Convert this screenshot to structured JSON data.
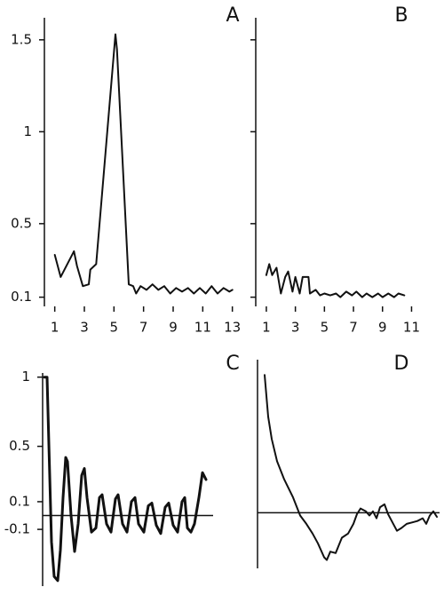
{
  "chart_data": [
    {
      "type": "line",
      "title": "A",
      "color": "#111111",
      "x": [
        1,
        1.4,
        2.3,
        2.5,
        2.9,
        3.3,
        3.4,
        3.8,
        5.1,
        5.2,
        6.0,
        6.3,
        6.5,
        6.8,
        7.2,
        7.6,
        8.0,
        8.4,
        8.8,
        9.2,
        9.6,
        10.0,
        10.4,
        10.8,
        11.2,
        11.6,
        12.0,
        12.4,
        12.8,
        13.0
      ],
      "values": [
        0.33,
        0.21,
        0.35,
        0.27,
        0.16,
        0.17,
        0.25,
        0.28,
        1.53,
        1.45,
        0.17,
        0.16,
        0.12,
        0.16,
        0.14,
        0.17,
        0.14,
        0.16,
        0.12,
        0.15,
        0.13,
        0.15,
        0.12,
        0.15,
        0.12,
        0.16,
        0.12,
        0.15,
        0.13,
        0.14
      ],
      "xlim": [
        0.3,
        13.5
      ],
      "ylim": [
        0.05,
        1.62
      ],
      "xticks": [
        1,
        3,
        5,
        7,
        9,
        11,
        13
      ],
      "yticks": [
        0.1,
        0.5,
        1,
        1.5
      ],
      "ytick_labels": true
    },
    {
      "type": "line",
      "title": "B",
      "color": "#111111",
      "x": [
        1.0,
        1.2,
        1.4,
        1.7,
        2.0,
        2.3,
        2.5,
        2.8,
        3.0,
        3.3,
        3.5,
        3.9,
        4.0,
        4.4,
        4.7,
        5.0,
        5.4,
        5.8,
        6.1,
        6.5,
        6.9,
        7.2,
        7.6,
        7.9,
        8.3,
        8.7,
        9.0,
        9.4,
        9.8,
        10.1,
        10.5
      ],
      "values": [
        0.22,
        0.28,
        0.22,
        0.26,
        0.12,
        0.21,
        0.24,
        0.13,
        0.21,
        0.12,
        0.21,
        0.21,
        0.12,
        0.14,
        0.11,
        0.12,
        0.11,
        0.12,
        0.1,
        0.13,
        0.11,
        0.13,
        0.1,
        0.12,
        0.1,
        0.12,
        0.1,
        0.12,
        0.1,
        0.12,
        0.11
      ],
      "xlim": [
        0.27,
        11.4
      ],
      "ylim": [
        0.05,
        1.62
      ],
      "xticks": [
        1,
        3,
        5,
        7,
        9,
        11
      ],
      "yticks": [
        0.1,
        0.5,
        1,
        1.5
      ],
      "ytick_labels": false
    },
    {
      "type": "line",
      "title": "C",
      "color": "#111111",
      "line_width": 3,
      "zero_line": true,
      "x": [
        2,
        5,
        7,
        10,
        13,
        17,
        20,
        23,
        26,
        28,
        32,
        36,
        40,
        44,
        47,
        50,
        55,
        60,
        64,
        67,
        72,
        77,
        82,
        85,
        90,
        95,
        100,
        104,
        108,
        114,
        119,
        123,
        128,
        133,
        138,
        142,
        147,
        152,
        157,
        160,
        163,
        167,
        171,
        176,
        180,
        184
      ],
      "values": [
        1.0,
        1.0,
        0.52,
        -0.19,
        -0.44,
        -0.47,
        -0.25,
        0.13,
        0.42,
        0.39,
        0.0,
        -0.26,
        -0.06,
        0.29,
        0.34,
        0.13,
        -0.12,
        -0.09,
        0.13,
        0.15,
        -0.06,
        -0.12,
        0.12,
        0.15,
        -0.06,
        -0.12,
        0.1,
        0.13,
        -0.06,
        -0.12,
        0.07,
        0.09,
        -0.07,
        -0.13,
        0.06,
        0.09,
        -0.07,
        -0.12,
        0.1,
        0.13,
        -0.09,
        -0.12,
        -0.06,
        0.13,
        0.31,
        0.26
      ],
      "xlim": [
        0,
        192
      ],
      "ylim": [
        -0.51,
        1.03
      ],
      "yticks": [
        -0.1,
        0.1,
        0.5,
        1
      ],
      "ytick_labels": true
    },
    {
      "type": "line",
      "title": "D",
      "color": "#111111",
      "zero_line": true,
      "x": [
        8,
        12,
        16,
        22,
        30,
        40,
        48,
        55,
        62,
        68,
        75,
        78,
        82,
        88,
        95,
        102,
        108,
        112,
        116,
        122,
        126,
        130,
        134,
        138,
        143,
        147,
        152,
        157,
        162,
        168,
        174,
        180,
        186,
        190,
        194,
        198,
        202
      ],
      "values": [
        0.99,
        0.69,
        0.53,
        0.37,
        0.24,
        0.11,
        -0.02,
        -0.08,
        -0.15,
        -0.22,
        -0.32,
        -0.34,
        -0.28,
        -0.29,
        -0.18,
        -0.15,
        -0.08,
        -0.01,
        0.03,
        0.01,
        -0.02,
        0.01,
        -0.04,
        0.04,
        0.06,
        -0.01,
        -0.07,
        -0.13,
        -0.11,
        -0.08,
        -0.07,
        -0.06,
        -0.04,
        -0.08,
        -0.02,
        0.01,
        -0.03
      ],
      "xlim": [
        0,
        205
      ],
      "ylim": [
        -0.4,
        1.1
      ]
    }
  ]
}
